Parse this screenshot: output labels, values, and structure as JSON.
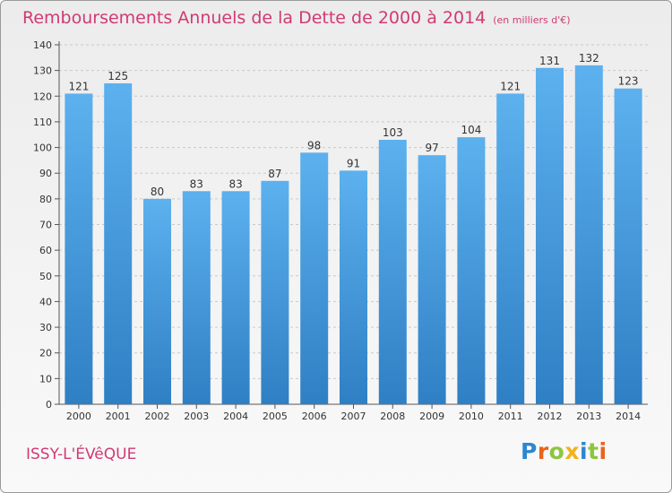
{
  "title": {
    "main": "Remboursements Annuels de la Dette de 2000 à 2014",
    "unit": "(en milliers d'€)"
  },
  "commune": "ISSY-L'ÉVêQUE",
  "logo": {
    "letters": [
      {
        "char": "P",
        "color": "#2e86cf"
      },
      {
        "char": "r",
        "color": "#e8641c"
      },
      {
        "char": "o",
        "color": "#8cc63f"
      },
      {
        "char": "x",
        "color": "#f2b21a"
      },
      {
        "char": "i",
        "color": "#2e86cf"
      },
      {
        "char": "t",
        "color": "#8cc63f"
      },
      {
        "char": "i",
        "color": "#e8641c"
      }
    ]
  },
  "chart_data": {
    "type": "bar",
    "categories": [
      "2000",
      "2001",
      "2002",
      "2003",
      "2004",
      "2005",
      "2006",
      "2007",
      "2008",
      "2009",
      "2010",
      "2011",
      "2012",
      "2013",
      "2014"
    ],
    "values": [
      121,
      125,
      80,
      83,
      83,
      87,
      98,
      91,
      103,
      97,
      104,
      121,
      131,
      132,
      123
    ],
    "ylim": [
      0,
      140
    ],
    "yticks": [
      0,
      10,
      20,
      30,
      40,
      50,
      60,
      70,
      80,
      90,
      100,
      110,
      120,
      130,
      140
    ],
    "grid": true,
    "bar_color": "#4a9fe0",
    "title_color": "#d03a73"
  }
}
